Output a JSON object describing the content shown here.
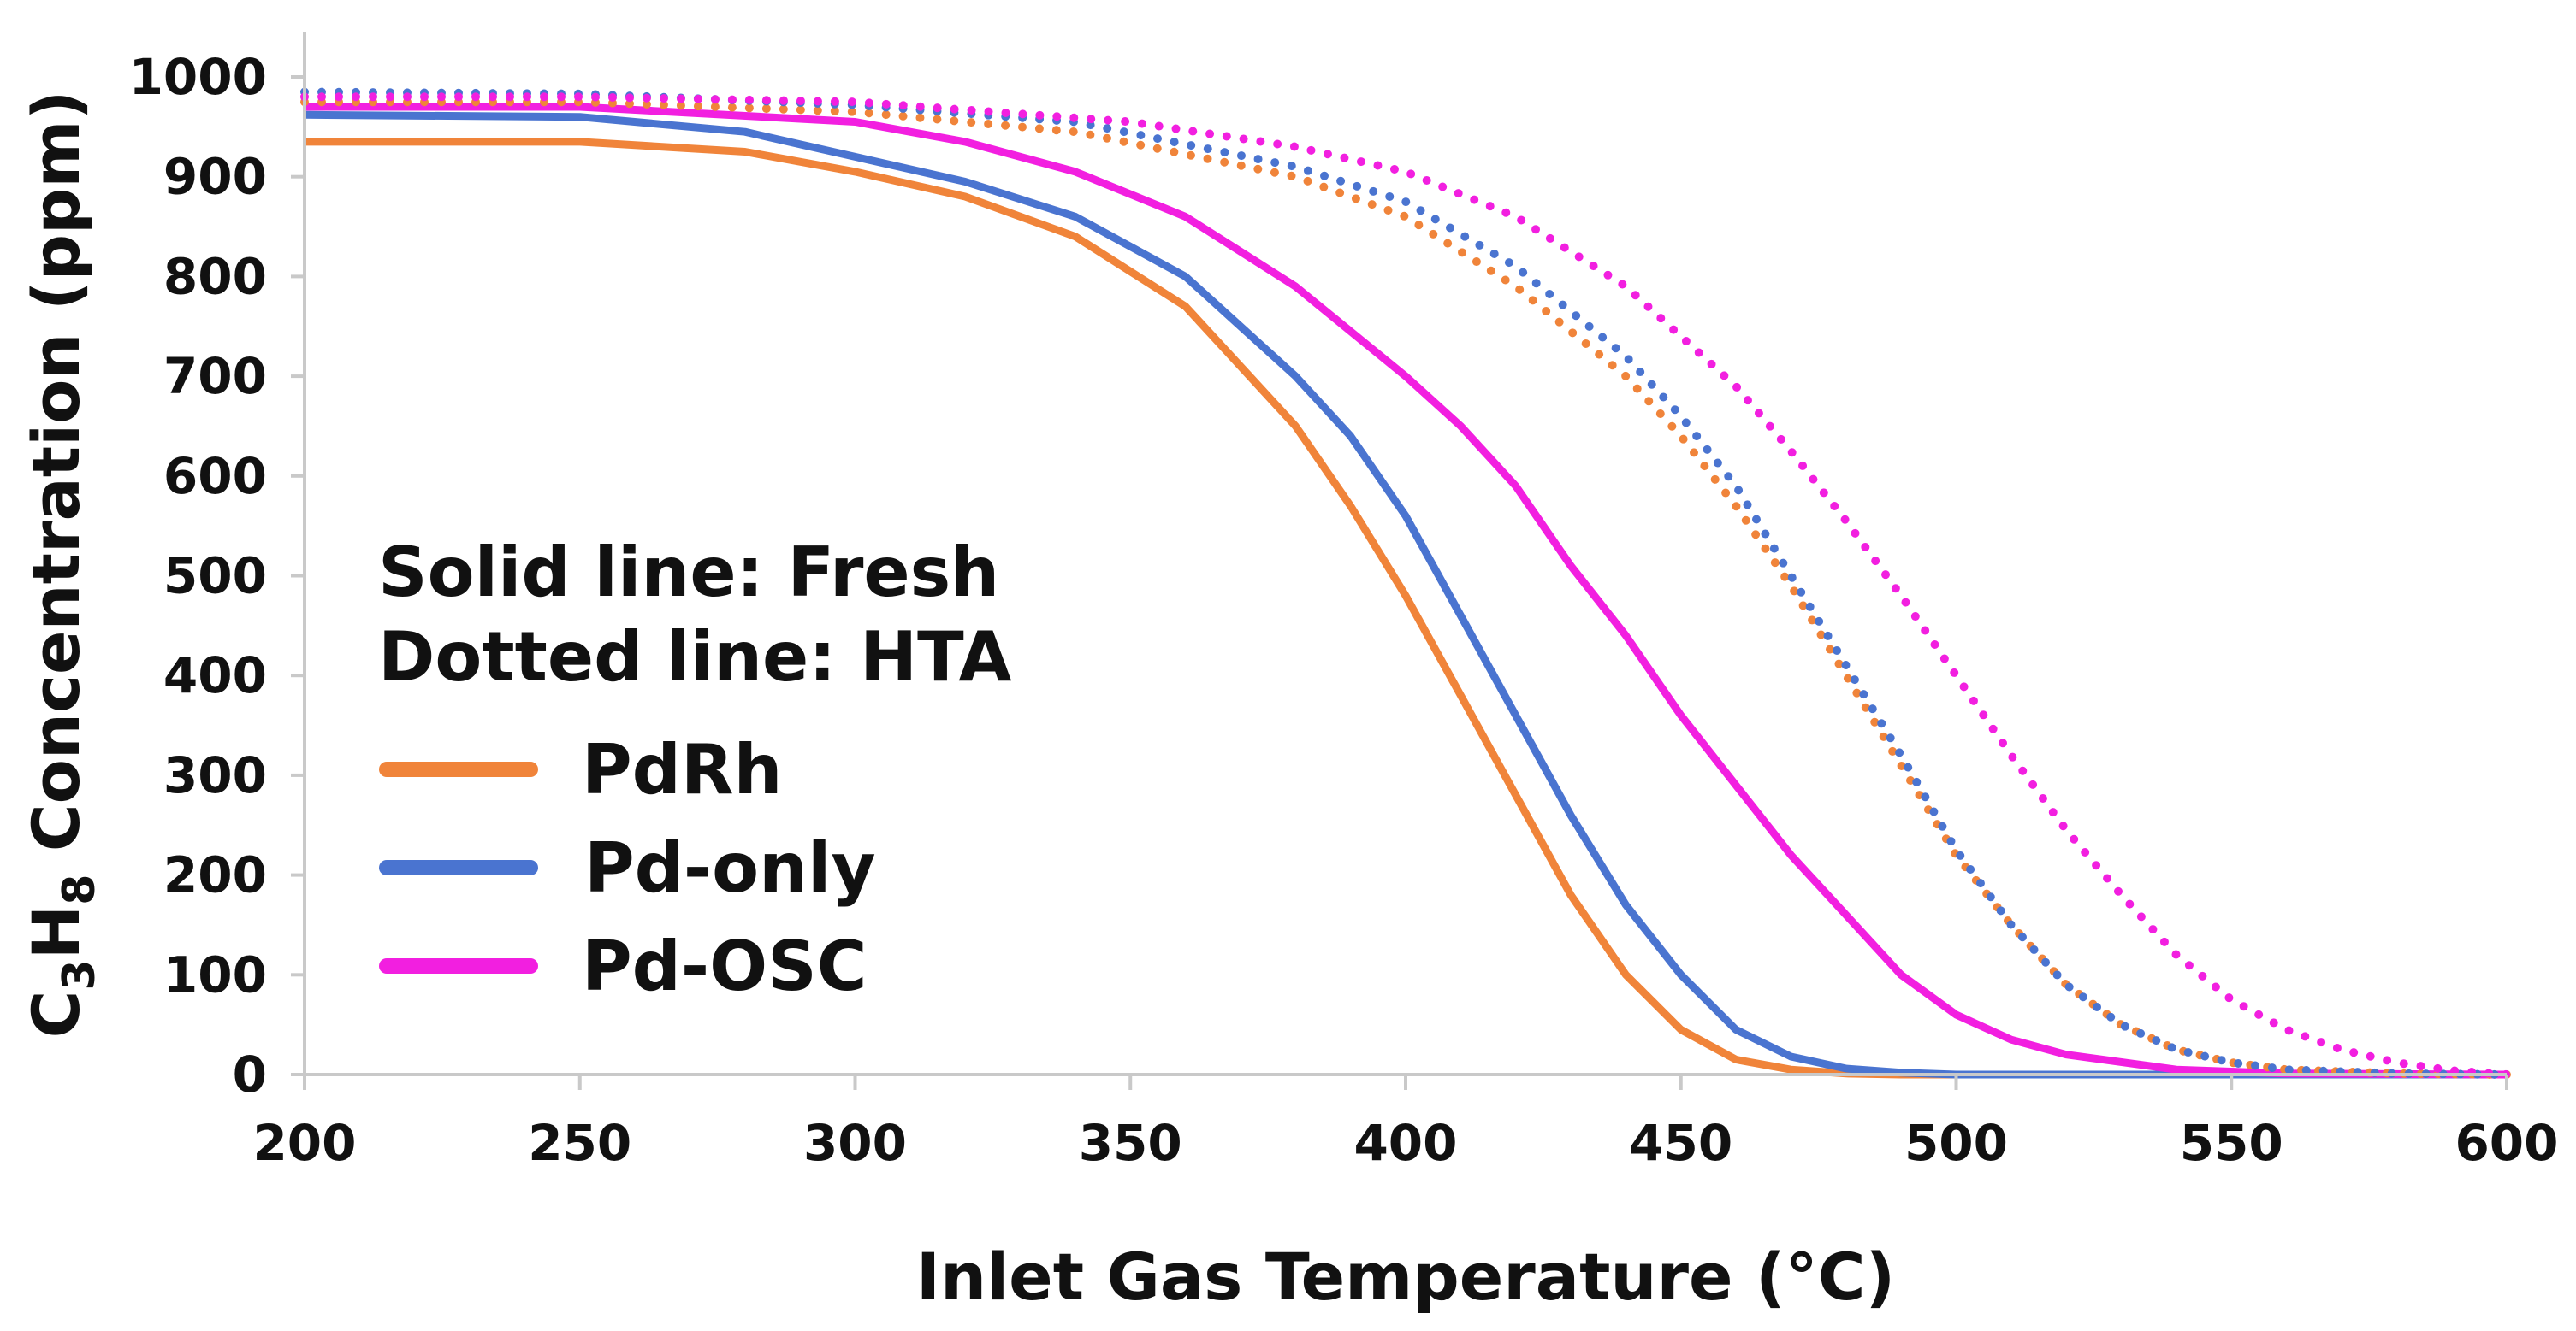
{
  "chart_data": {
    "type": "line",
    "title": "",
    "xlabel": "Inlet Gas Temperature (°C)",
    "ylabel": {
      "prefix": "C",
      "sub1": "3",
      "mid": "H",
      "sub2": "8",
      "suffix": " Concentration  (ppm)"
    },
    "xlim": [
      200,
      600
    ],
    "ylim": [
      0,
      1000
    ],
    "xticks": [
      "200",
      "250",
      "300",
      "350",
      "400",
      "450",
      "500",
      "550",
      "600"
    ],
    "yticks": [
      "0",
      "100",
      "200",
      "300",
      "400",
      "500",
      "600",
      "700",
      "800",
      "900",
      "1000"
    ],
    "grid": false,
    "legend": {
      "position": "center-left",
      "notes": [
        "Solid line: Fresh",
        "Dotted line: HTA"
      ],
      "entries": [
        {
          "label": "PdRh",
          "color": "#F0843A"
        },
        {
          "label": "Pd-only",
          "color": "#4A74D0"
        },
        {
          "label": "Pd-OSC",
          "color": "#F21FE0"
        }
      ]
    },
    "series": [
      {
        "name": "PdRh Fresh",
        "style": "solid",
        "color": "#F0843A",
        "x": [
          200,
          250,
          280,
          300,
          320,
          340,
          360,
          380,
          390,
          400,
          410,
          420,
          430,
          440,
          450,
          460,
          470,
          480,
          490,
          500,
          600
        ],
        "y": [
          935,
          935,
          925,
          905,
          880,
          840,
          770,
          650,
          570,
          480,
          380,
          280,
          180,
          100,
          45,
          15,
          5,
          1,
          0,
          0,
          0
        ]
      },
      {
        "name": "Pd-only Fresh",
        "style": "solid",
        "color": "#4A74D0",
        "x": [
          200,
          250,
          280,
          300,
          320,
          340,
          360,
          380,
          390,
          400,
          410,
          420,
          430,
          440,
          450,
          460,
          470,
          480,
          490,
          500,
          600
        ],
        "y": [
          962,
          960,
          945,
          920,
          895,
          860,
          800,
          700,
          640,
          560,
          460,
          360,
          260,
          170,
          100,
          45,
          18,
          6,
          2,
          0,
          0
        ]
      },
      {
        "name": "Pd-OSC Fresh",
        "style": "solid",
        "color": "#F21FE0",
        "x": [
          200,
          250,
          300,
          320,
          340,
          360,
          380,
          400,
          410,
          420,
          430,
          440,
          450,
          460,
          470,
          480,
          490,
          500,
          510,
          520,
          540,
          560,
          600
        ],
        "y": [
          970,
          970,
          955,
          935,
          905,
          860,
          790,
          700,
          650,
          590,
          510,
          440,
          360,
          290,
          220,
          160,
          100,
          60,
          35,
          20,
          5,
          1,
          0
        ]
      },
      {
        "name": "PdRh HTA",
        "style": "dotted",
        "color": "#F0843A",
        "x": [
          200,
          250,
          300,
          340,
          380,
          400,
          420,
          440,
          450,
          460,
          470,
          480,
          490,
          500,
          510,
          520,
          530,
          540,
          550,
          560,
          580,
          600
        ],
        "y": [
          975,
          975,
          965,
          945,
          900,
          860,
          790,
          700,
          640,
          570,
          490,
          400,
          310,
          220,
          150,
          90,
          50,
          25,
          12,
          5,
          1,
          0
        ]
      },
      {
        "name": "Pd-only HTA",
        "style": "dotted",
        "color": "#4A74D0",
        "x": [
          200,
          250,
          300,
          340,
          380,
          400,
          420,
          440,
          450,
          460,
          470,
          480,
          490,
          500,
          510,
          520,
          530,
          540,
          550,
          560,
          580,
          600
        ],
        "y": [
          985,
          983,
          972,
          955,
          910,
          875,
          810,
          720,
          660,
          590,
          500,
          410,
          320,
          225,
          150,
          90,
          50,
          25,
          12,
          5,
          1,
          0
        ]
      },
      {
        "name": "Pd-OSC HTA",
        "style": "dotted",
        "color": "#F21FE0",
        "x": [
          200,
          250,
          300,
          350,
          380,
          400,
          420,
          440,
          460,
          470,
          480,
          490,
          500,
          510,
          520,
          530,
          540,
          550,
          560,
          570,
          580,
          590,
          600
        ],
        "y": [
          980,
          980,
          975,
          955,
          930,
          905,
          860,
          790,
          690,
          625,
          555,
          480,
          400,
          320,
          245,
          180,
          120,
          75,
          45,
          25,
          12,
          4,
          0
        ]
      }
    ]
  }
}
